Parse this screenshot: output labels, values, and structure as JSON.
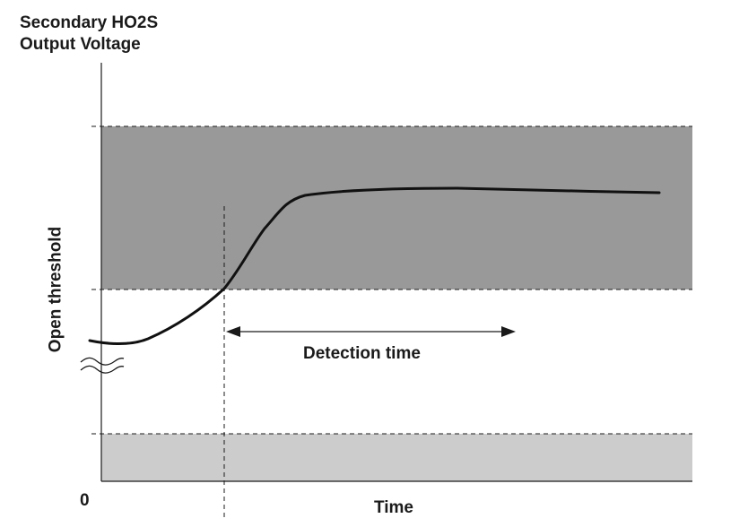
{
  "labels": {
    "y_axis_line1": "Secondary HO2S",
    "y_axis_line2": "Output Voltage",
    "origin": "0",
    "x_axis": "Time",
    "threshold": "Open threshold",
    "detection": "Detection time"
  },
  "colors": {
    "upper_band": "#999999",
    "lower_band": "#cccccc",
    "lines": "#1a1a1a"
  }
}
